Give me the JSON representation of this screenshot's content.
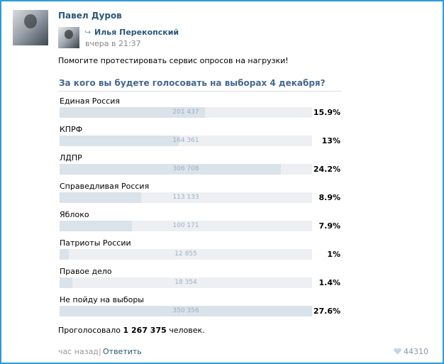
{
  "post": {
    "author": "Павел Дуров",
    "repost_author": "Илья Перекопский",
    "repost_time": "вчера в 21:37",
    "text": "Помогите протестировать сервис опросов на нагрузки!"
  },
  "poll": {
    "question": "За кого вы будете голосовать на выборах 4 декабря?",
    "options": [
      {
        "label": "Единая Россия",
        "count": "201 437",
        "percent": "15.9%",
        "share": 15.9
      },
      {
        "label": "КПРФ",
        "count": "164 361",
        "percent": "13%",
        "share": 13.0
      },
      {
        "label": "ЛДПР",
        "count": "306 708",
        "percent": "24.2%",
        "share": 24.2
      },
      {
        "label": "Справедливая Россия",
        "count": "113 133",
        "percent": "8.9%",
        "share": 8.9
      },
      {
        "label": "Яблоко",
        "count": "100 171",
        "percent": "7.9%",
        "share": 7.9
      },
      {
        "label": "Патриоты России",
        "count": "12 855",
        "percent": "1%",
        "share": 1.0
      },
      {
        "label": "Правое дело",
        "count": "18 354",
        "percent": "1.4%",
        "share": 1.4
      },
      {
        "label": "Не пойду на выборы",
        "count": "350 356",
        "percent": "27.6%",
        "share": 27.6
      }
    ],
    "total_prefix": "Проголосовало",
    "total_votes": "1 267 375",
    "total_suffix": "человек."
  },
  "footer": {
    "time": "час назад",
    "separator": "|",
    "reply": "Ответить",
    "likes": "44310"
  },
  "colors": {
    "link": "#2b587a",
    "accent": "#45688e",
    "bar_fill": "#dae2ea",
    "bar_track": "#edeff2",
    "frame_border": "#2b9bd8"
  },
  "icons": {
    "repost": "repost-arrow-icon",
    "like": "heart-icon"
  }
}
